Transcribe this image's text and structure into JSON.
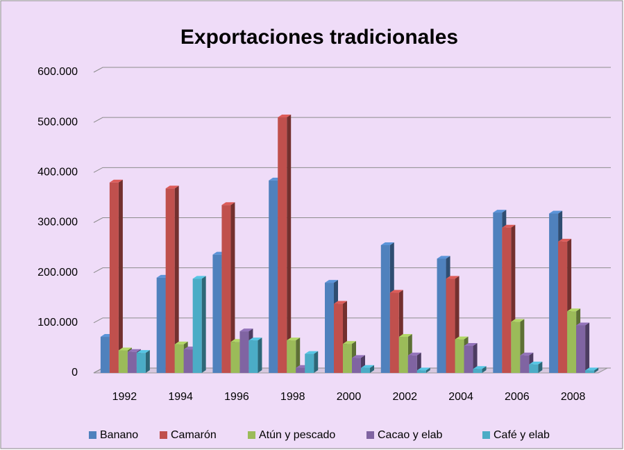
{
  "chart_data": {
    "type": "bar",
    "title": "Exportaciones tradicionales",
    "categories": [
      "1992",
      "1994",
      "1996",
      "1998",
      "2000",
      "2002",
      "2004",
      "2006",
      "2008"
    ],
    "series": [
      {
        "name": "Banano",
        "color": "#4f81bd",
        "values": [
          72000,
          190000,
          236000,
          384000,
          180000,
          255000,
          228000,
          320000,
          318000
        ]
      },
      {
        "name": "Camarón",
        "color": "#c0504d",
        "values": [
          380000,
          368000,
          335000,
          510000,
          138000,
          160000,
          188000,
          290000,
          262000
        ]
      },
      {
        "name": "Atún y pescado",
        "color": "#9bbb59",
        "values": [
          45000,
          57000,
          62000,
          65000,
          58000,
          72000,
          67000,
          102000,
          123000
        ]
      },
      {
        "name": "Cacao y elab",
        "color": "#8064a2",
        "values": [
          42000,
          47000,
          83000,
          10000,
          30000,
          35000,
          54000,
          35000,
          95000
        ]
      },
      {
        "name": "Café y elab",
        "color": "#4bacc6",
        "values": [
          40000,
          188000,
          65000,
          38000,
          10000,
          5000,
          8000,
          17000,
          5000
        ]
      }
    ],
    "ylim": [
      0,
      600000
    ],
    "yticks": [
      0,
      {
        "value": 100000,
        "label": "100.000"
      },
      {
        "value": 200000,
        "label": "200.000"
      },
      {
        "value": 300000,
        "label": "300.000"
      },
      {
        "value": 400000,
        "label": "400.000"
      },
      {
        "value": 500000,
        "label": "500.000"
      },
      {
        "value": 600000,
        "label": "600.000"
      }
    ],
    "grid": true,
    "legend": "bottom"
  }
}
